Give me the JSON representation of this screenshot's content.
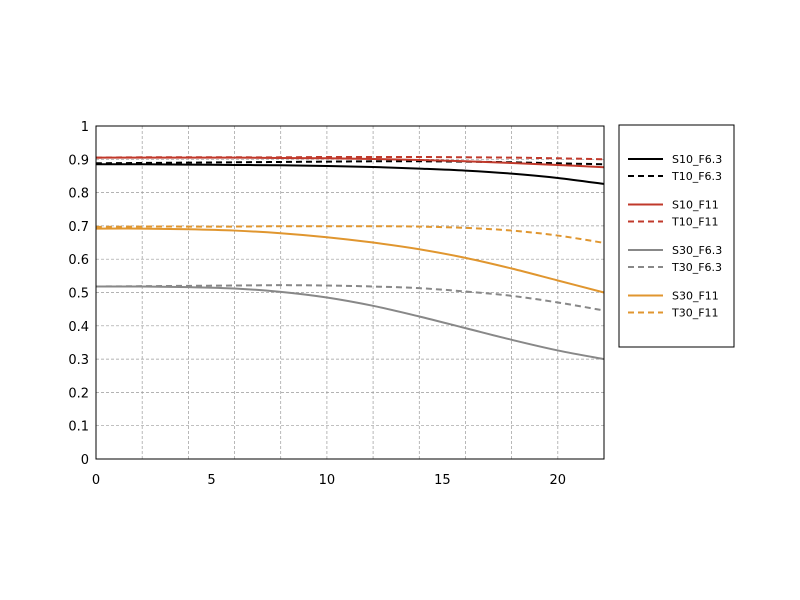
{
  "chart_data": {
    "type": "line",
    "title": "",
    "xlabel": "",
    "ylabel": "",
    "xlim": [
      0,
      22
    ],
    "ylim": [
      0,
      1
    ],
    "x_ticks": [
      "0",
      "5",
      "10",
      "15",
      "20"
    ],
    "y_ticks": [
      "0",
      "0.1",
      "0.2",
      "0.3",
      "0.4",
      "0.5",
      "0.6",
      "0.7",
      "0.8",
      "0.9",
      "1"
    ],
    "grid": true,
    "legend_position": "right",
    "x": [
      0,
      2,
      4,
      6,
      8,
      10,
      12,
      14,
      16,
      18,
      20,
      22
    ],
    "series": [
      {
        "name": "S10_F6.3",
        "color": "#000000",
        "dash": "solid",
        "values": [
          0.885,
          0.885,
          0.884,
          0.883,
          0.882,
          0.88,
          0.877,
          0.872,
          0.866,
          0.857,
          0.844,
          0.826
        ]
      },
      {
        "name": "T10_F6.3",
        "color": "#000000",
        "dash": "dashed",
        "values": [
          0.888,
          0.889,
          0.89,
          0.891,
          0.892,
          0.893,
          0.894,
          0.894,
          0.893,
          0.891,
          0.888,
          0.885
        ]
      },
      {
        "name": "S10_F11",
        "color": "#c0392b",
        "dash": "solid",
        "values": [
          0.905,
          0.905,
          0.905,
          0.905,
          0.904,
          0.903,
          0.901,
          0.898,
          0.894,
          0.889,
          0.883,
          0.876
        ]
      },
      {
        "name": "T10_F11",
        "color": "#c0392b",
        "dash": "dashed",
        "values": [
          0.905,
          0.906,
          0.906,
          0.906,
          0.906,
          0.907,
          0.907,
          0.907,
          0.906,
          0.905,
          0.903,
          0.9
        ]
      },
      {
        "name": "S30_F6.3",
        "color": "#888888",
        "dash": "solid",
        "values": [
          0.518,
          0.518,
          0.516,
          0.512,
          0.502,
          0.485,
          0.46,
          0.428,
          0.393,
          0.358,
          0.326,
          0.3
        ]
      },
      {
        "name": "T30_F6.3",
        "color": "#888888",
        "dash": "dashed",
        "values": [
          0.518,
          0.519,
          0.52,
          0.521,
          0.522,
          0.521,
          0.518,
          0.513,
          0.503,
          0.49,
          0.47,
          0.446
        ]
      },
      {
        "name": "S30_F11",
        "color": "#e0962f",
        "dash": "solid",
        "values": [
          0.692,
          0.692,
          0.69,
          0.686,
          0.678,
          0.666,
          0.65,
          0.63,
          0.604,
          0.572,
          0.536,
          0.5
        ]
      },
      {
        "name": "T30_F11",
        "color": "#e0962f",
        "dash": "dashed",
        "values": [
          0.697,
          0.698,
          0.698,
          0.698,
          0.699,
          0.699,
          0.699,
          0.698,
          0.694,
          0.686,
          0.671,
          0.649
        ]
      }
    ]
  }
}
